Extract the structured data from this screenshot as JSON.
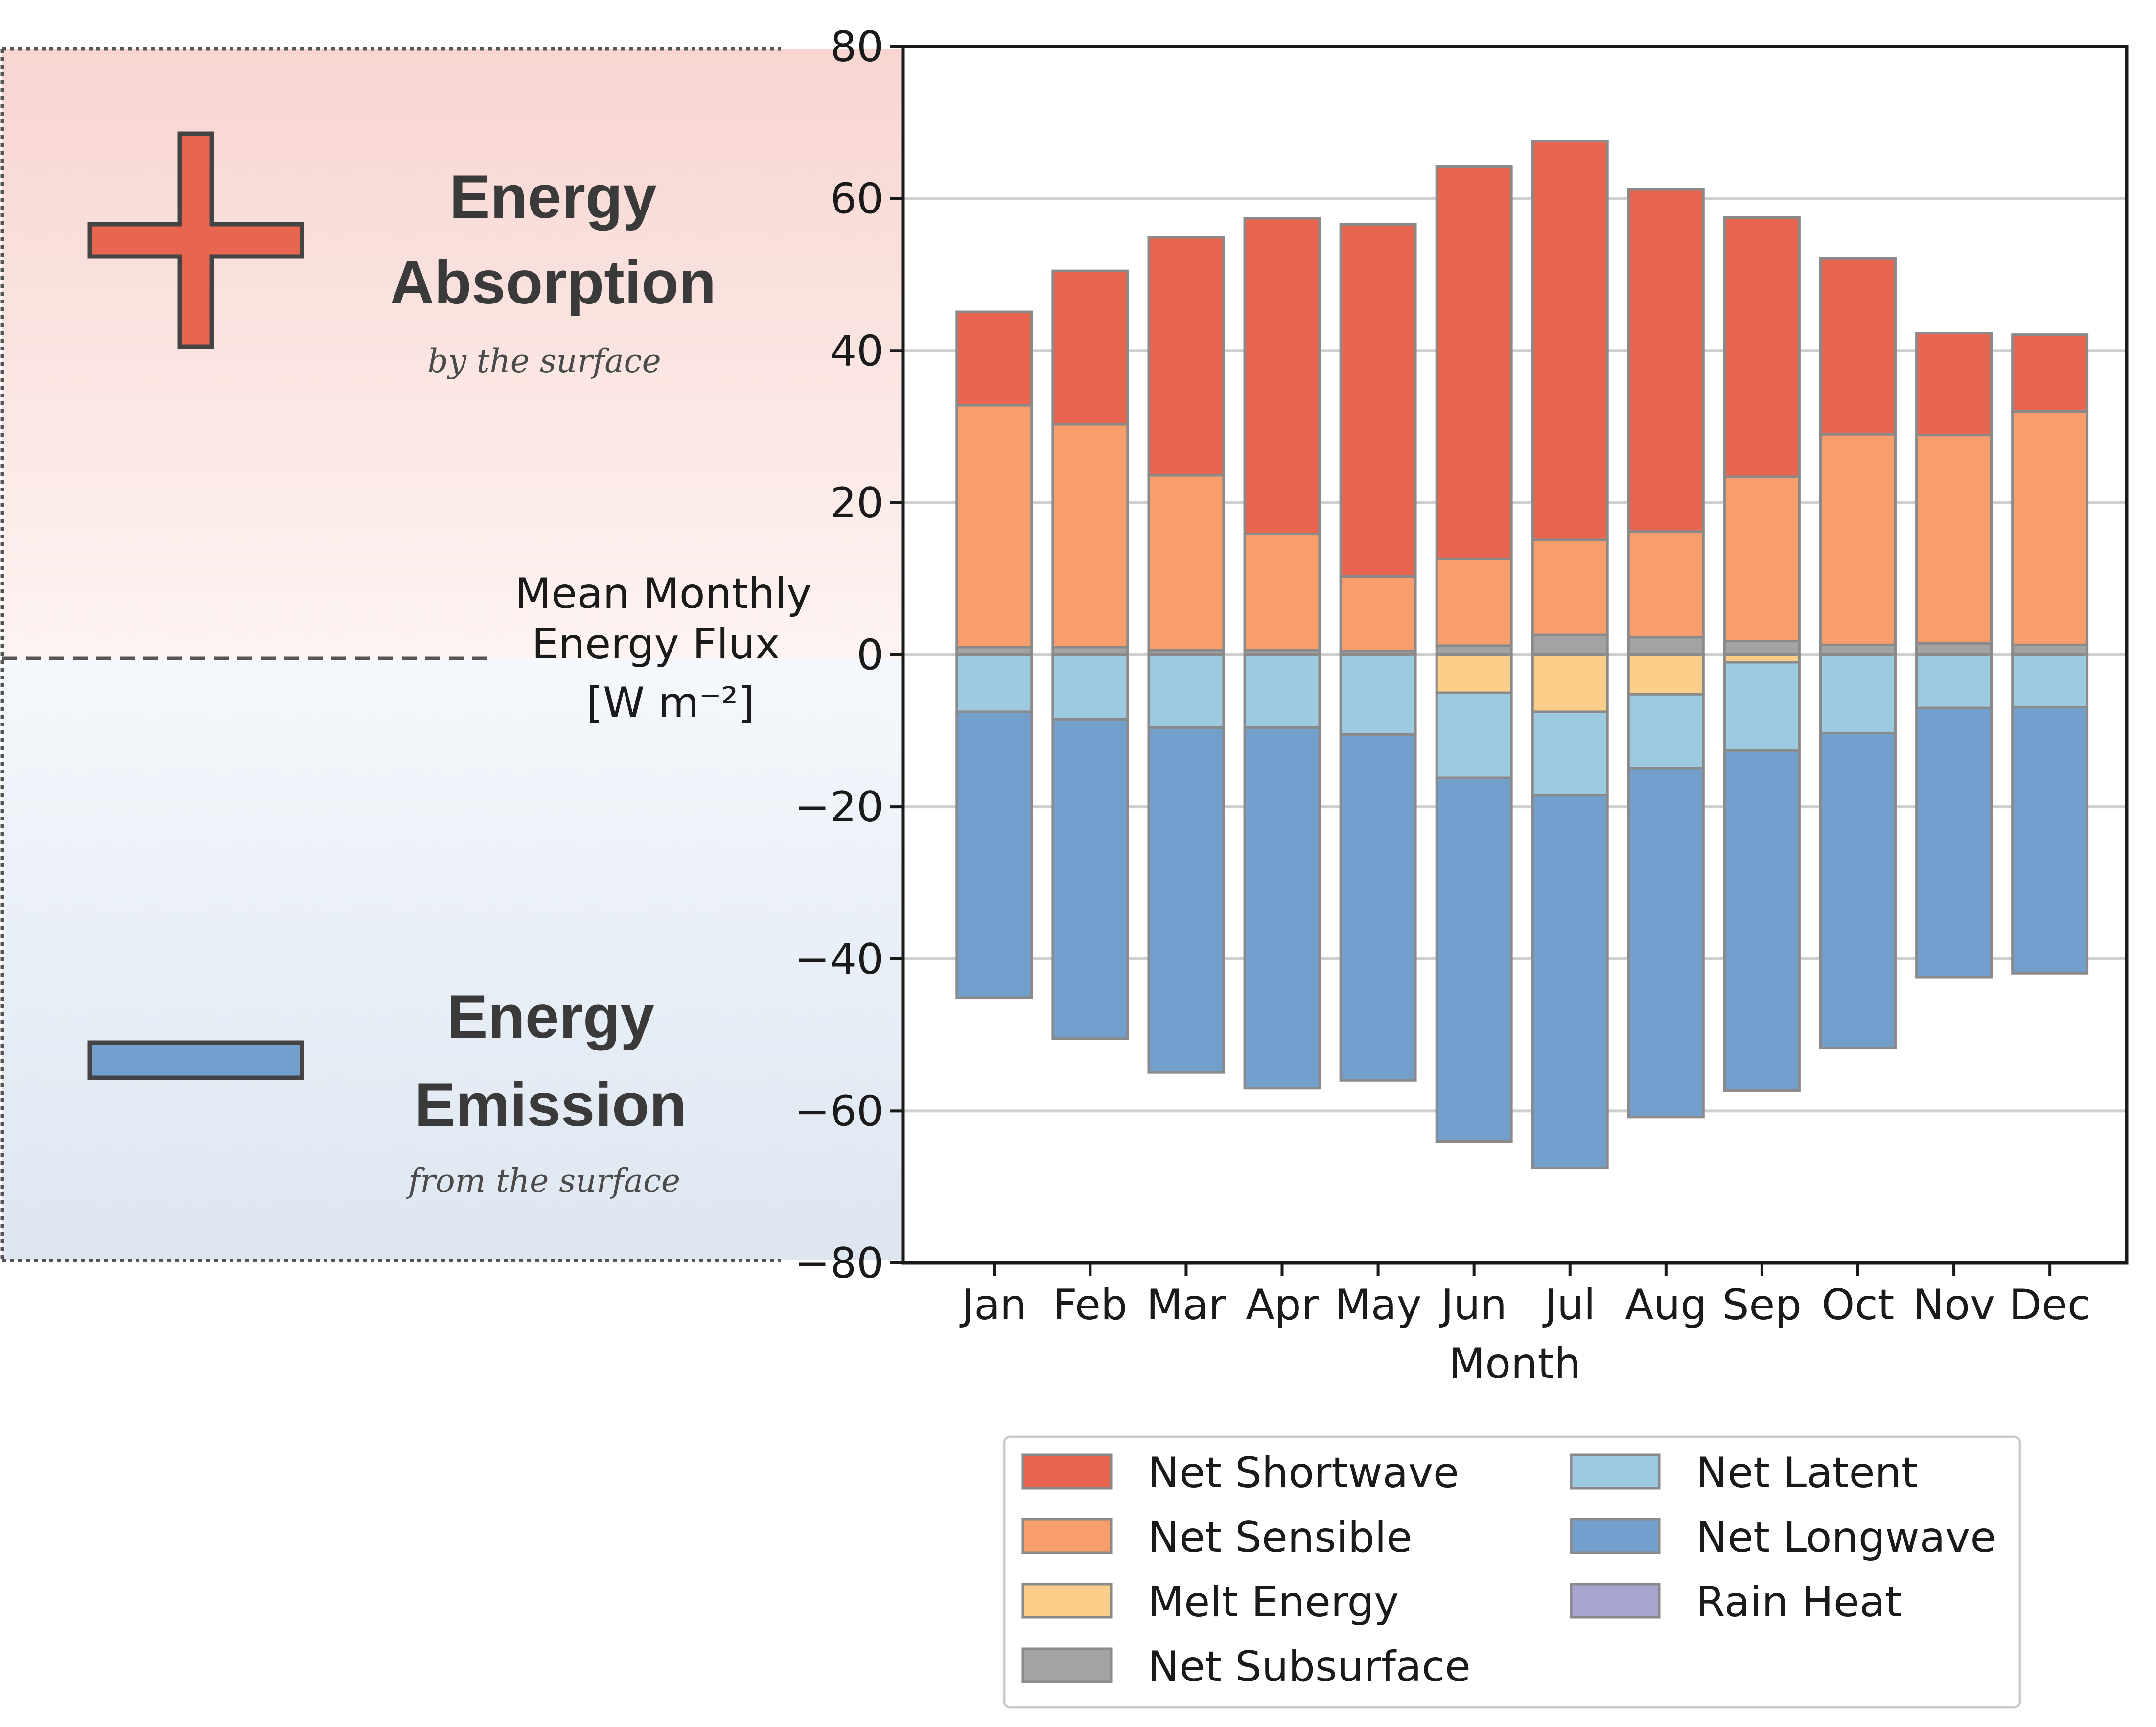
{
  "panels": {
    "absorption": {
      "title_line1": "Energy",
      "title_line2": "Absorption",
      "subtitle": "by the surface",
      "symbol": "plus-icon",
      "color": "#e8654f"
    },
    "emission": {
      "title_line1": "Energy",
      "title_line2": "Emission",
      "subtitle": "from the surface",
      "symbol": "minus-icon",
      "color": "#739fcc"
    }
  },
  "chart_data": {
    "type": "bar",
    "stacked": true,
    "xlabel": "Month",
    "ylabel_lines": [
      "Mean Monthly",
      "Energy Flux",
      "[W m⁻²]"
    ],
    "ylim": [
      -80,
      80
    ],
    "yticks": [
      80,
      60,
      40,
      20,
      0,
      -20,
      -40,
      -60,
      -80
    ],
    "ytick_labels": [
      "80",
      "60",
      "40",
      "20",
      "0",
      "−20",
      "−40",
      "−60",
      "−80"
    ],
    "grid": "horizontal",
    "legend_position": "bottom",
    "categories": [
      "Jan",
      "Feb",
      "Mar",
      "Apr",
      "May",
      "Jun",
      "Jul",
      "Aug",
      "Sep",
      "Oct",
      "Nov",
      "Dec"
    ],
    "series": [
      {
        "name": "Net Subsurface",
        "color": "#a3a3a3",
        "values": [
          1.0,
          1.0,
          0.6,
          0.6,
          0.5,
          1.2,
          2.6,
          2.3,
          1.8,
          1.3,
          1.5,
          1.3
        ]
      },
      {
        "name": "Net Sensible",
        "color": "#f79e6c",
        "values": [
          31.8,
          29.3,
          23.0,
          15.3,
          9.8,
          11.4,
          12.5,
          13.9,
          21.6,
          27.7,
          27.4,
          30.7
        ]
      },
      {
        "name": "Net Shortwave",
        "color": "#e8654f",
        "values": [
          12.3,
          20.2,
          31.3,
          41.5,
          46.3,
          51.6,
          52.5,
          45.0,
          34.1,
          23.1,
          13.4,
          10.1
        ]
      },
      {
        "name": "Rain Heat",
        "color": "#a8a4d0",
        "values": [
          0,
          0,
          0,
          0,
          0,
          0,
          0,
          0,
          0,
          0,
          0,
          0
        ]
      },
      {
        "name": "Melt Energy",
        "color": "#fdcd8a",
        "values": [
          0,
          0,
          0,
          0,
          0,
          -5.0,
          -7.5,
          -5.2,
          -1.0,
          0,
          0,
          0
        ]
      },
      {
        "name": "Net Latent",
        "color": "#9ecae1",
        "values": [
          -7.5,
          -8.5,
          -9.6,
          -9.6,
          -10.5,
          -11.2,
          -11.0,
          -9.7,
          -11.6,
          -10.3,
          -7.0,
          -6.9
        ]
      },
      {
        "name": "Net Longwave",
        "color": "#739fcc",
        "values": [
          -37.6,
          -42.0,
          -45.3,
          -47.4,
          -45.5,
          -47.8,
          -49.0,
          -45.9,
          -44.7,
          -41.4,
          -35.4,
          -35.0
        ]
      }
    ],
    "legend": [
      {
        "label": "Net Shortwave",
        "color": "#e8654f"
      },
      {
        "label": "Net Latent",
        "color": "#9ecae1"
      },
      {
        "label": "Net Sensible",
        "color": "#f79e6c"
      },
      {
        "label": "Net Longwave",
        "color": "#739fcc"
      },
      {
        "label": "Melt Energy",
        "color": "#fdcd8a"
      },
      {
        "label": "Rain Heat",
        "color": "#a8a4d0"
      },
      {
        "label": "Net Subsurface",
        "color": "#a3a3a3"
      }
    ]
  }
}
